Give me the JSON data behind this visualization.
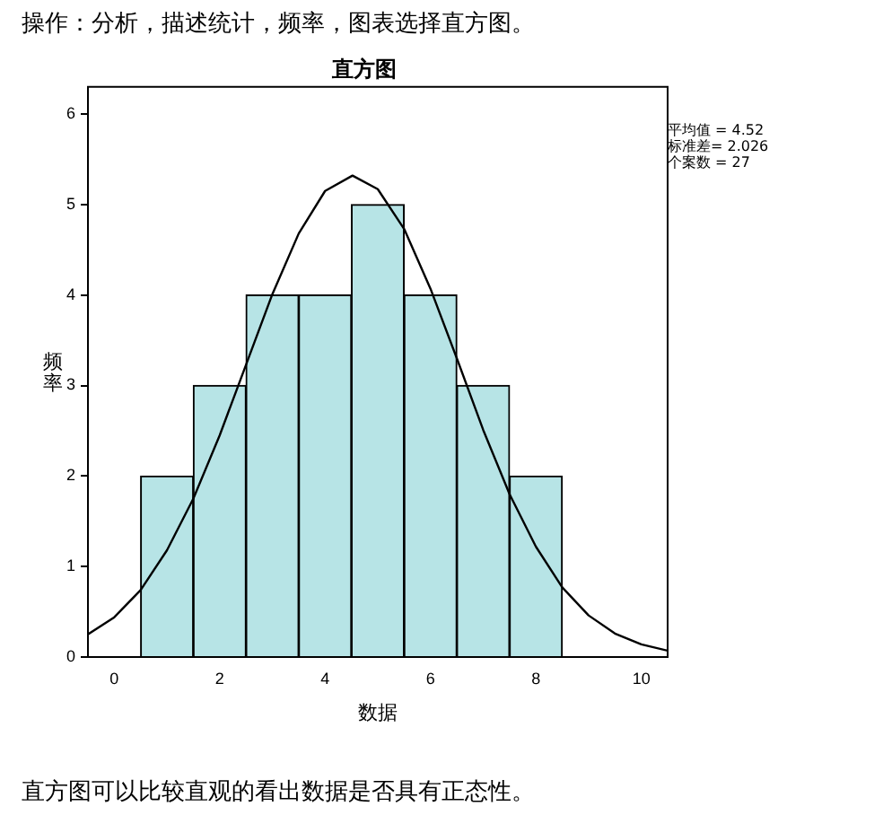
{
  "chart_data": {
    "type": "histogram",
    "title": "直方图",
    "xlabel": "数据",
    "ylabel": "频率",
    "bins": [
      0.5,
      1.5,
      2.5,
      3.5,
      4.5,
      5.5,
      6.5,
      7.5,
      8.5
    ],
    "series": [
      {
        "type": "histogram",
        "color": "#b7e4e6",
        "values": [
          2,
          3,
          4,
          4,
          5,
          4,
          3,
          2
        ]
      },
      {
        "type": "line",
        "color": "#000000",
        "x": [
          -0.5,
          0,
          0.5,
          1,
          1.5,
          2,
          2.5,
          3,
          3.5,
          4,
          4.52,
          5,
          5.5,
          6,
          6.5,
          7,
          7.5,
          8,
          8.5,
          9,
          9.5,
          10,
          10.5
        ],
        "values": [
          0.25,
          0.44,
          0.74,
          1.18,
          1.75,
          2.45,
          3.23,
          4.01,
          4.68,
          5.15,
          5.32,
          5.17,
          4.73,
          4.07,
          3.3,
          2.51,
          1.8,
          1.22,
          0.77,
          0.46,
          0.26,
          0.14,
          0.07
        ]
      }
    ],
    "xlim": [
      -0.5,
      10.5
    ],
    "xticks": [
      0,
      2,
      4,
      6,
      8,
      10
    ],
    "ylim": [
      0,
      6.3
    ],
    "yticks": [
      0,
      1,
      2,
      3,
      4,
      5,
      6
    ],
    "grid": false,
    "legend": false,
    "marker": "none",
    "annotations": [
      "操作：分析，描述统计，频率，图表选择直方图。",
      "平均值 = 4.52",
      "标准差= 2.026",
      "个案数 = 27",
      "直方图可以比较直观的看出数据是否具有正态性。"
    ]
  }
}
